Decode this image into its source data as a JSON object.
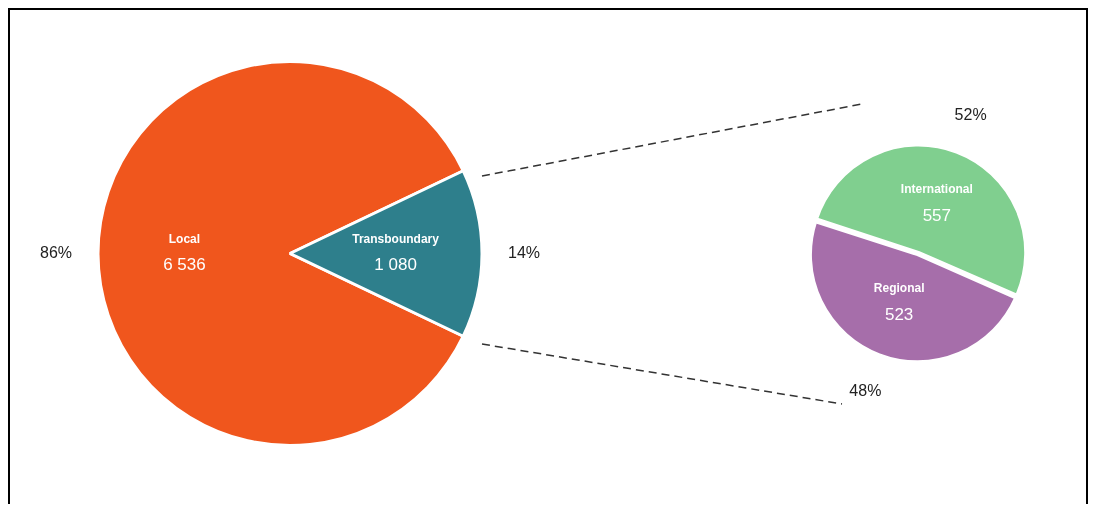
{
  "chart_data": [
    {
      "type": "pie",
      "categories": [
        "Local",
        "Transboundary"
      ],
      "values": [
        6536,
        1080
      ],
      "value_labels": [
        "6 536",
        "1 080"
      ],
      "colors": [
        "#f0561d",
        "#2e7f8c"
      ],
      "annotations": [
        "86%",
        "14%"
      ],
      "legend": false
    },
    {
      "type": "pie",
      "categories": [
        "International",
        "Regional"
      ],
      "values": [
        557,
        523
      ],
      "value_labels": [
        "557",
        "523"
      ],
      "colors": [
        "#80cf8f",
        "#a66eaa"
      ],
      "annotations": [
        "52%",
        "48%"
      ],
      "legend": false
    }
  ]
}
